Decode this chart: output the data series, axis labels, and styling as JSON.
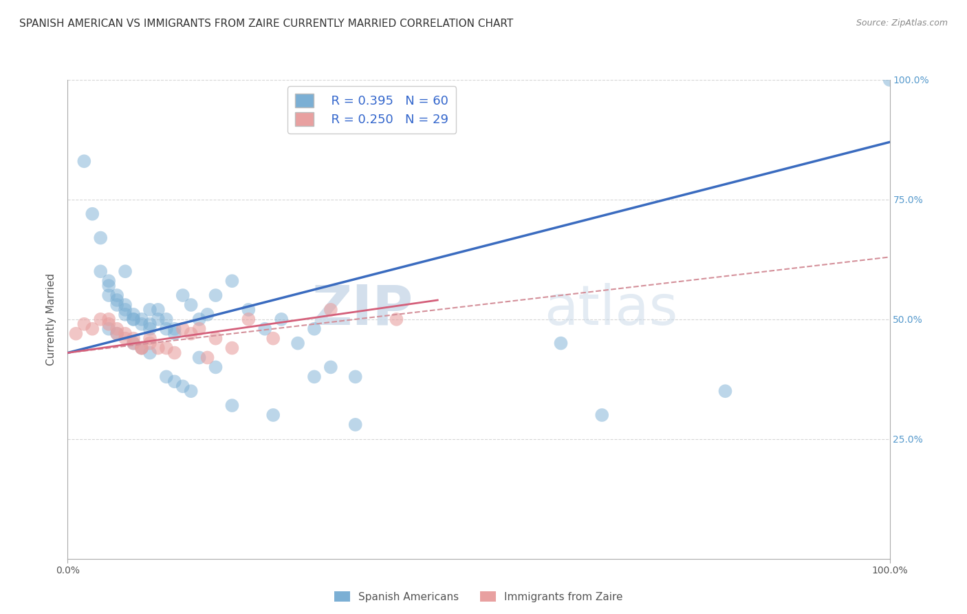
{
  "title": "SPANISH AMERICAN VS IMMIGRANTS FROM ZAIRE CURRENTLY MARRIED CORRELATION CHART",
  "source": "Source: ZipAtlas.com",
  "ylabel": "Currently Married",
  "xlim": [
    0.0,
    1.0
  ],
  "ylim": [
    0.0,
    1.0
  ],
  "y_tick_positions": [
    0.25,
    0.5,
    0.75,
    1.0
  ],
  "y_tick_labels": [
    "25.0%",
    "50.0%",
    "75.0%",
    "100.0%"
  ],
  "legend_r1": "R = 0.395",
  "legend_n1": "N = 60",
  "legend_r2": "R = 0.250",
  "legend_n2": "N = 29",
  "blue_color": "#7bafd4",
  "pink_color": "#e8a0a0",
  "line_blue": "#3a6bbf",
  "line_pink": "#d45f7a",
  "line_dashed_color": "#d4909a",
  "watermark_zip": "ZIP",
  "watermark_atlas": "atlas",
  "blue_scatter_x": [
    0.02,
    0.03,
    0.04,
    0.04,
    0.05,
    0.05,
    0.05,
    0.06,
    0.06,
    0.06,
    0.07,
    0.07,
    0.07,
    0.08,
    0.08,
    0.08,
    0.09,
    0.09,
    0.1,
    0.1,
    0.1,
    0.11,
    0.11,
    0.12,
    0.12,
    0.13,
    0.13,
    0.14,
    0.15,
    0.16,
    0.17,
    0.18,
    0.2,
    0.22,
    0.24,
    0.26,
    0.28,
    0.3,
    0.32,
    0.35,
    0.05,
    0.06,
    0.07,
    0.08,
    0.09,
    0.1,
    0.12,
    0.13,
    0.14,
    0.15,
    0.16,
    0.18,
    0.2,
    0.25,
    0.3,
    0.35,
    0.6,
    0.65,
    0.8,
    1.0
  ],
  "blue_scatter_y": [
    0.83,
    0.72,
    0.67,
    0.6,
    0.58,
    0.57,
    0.55,
    0.55,
    0.54,
    0.53,
    0.53,
    0.52,
    0.51,
    0.51,
    0.5,
    0.5,
    0.5,
    0.49,
    0.49,
    0.48,
    0.52,
    0.52,
    0.5,
    0.5,
    0.48,
    0.48,
    0.47,
    0.55,
    0.53,
    0.5,
    0.51,
    0.55,
    0.58,
    0.52,
    0.48,
    0.5,
    0.45,
    0.48,
    0.4,
    0.38,
    0.48,
    0.47,
    0.6,
    0.45,
    0.44,
    0.43,
    0.38,
    0.37,
    0.36,
    0.35,
    0.42,
    0.4,
    0.32,
    0.3,
    0.38,
    0.28,
    0.45,
    0.3,
    0.35,
    1.0
  ],
  "pink_scatter_x": [
    0.01,
    0.02,
    0.03,
    0.04,
    0.05,
    0.05,
    0.06,
    0.06,
    0.07,
    0.07,
    0.08,
    0.08,
    0.09,
    0.09,
    0.1,
    0.1,
    0.11,
    0.12,
    0.13,
    0.14,
    0.15,
    0.16,
    0.17,
    0.18,
    0.2,
    0.22,
    0.25,
    0.32,
    0.4
  ],
  "pink_scatter_y": [
    0.47,
    0.49,
    0.48,
    0.5,
    0.5,
    0.49,
    0.48,
    0.47,
    0.47,
    0.46,
    0.46,
    0.45,
    0.44,
    0.44,
    0.46,
    0.45,
    0.44,
    0.44,
    0.43,
    0.48,
    0.47,
    0.48,
    0.42,
    0.46,
    0.44,
    0.5,
    0.46,
    0.52,
    0.5
  ],
  "blue_line_x": [
    0.0,
    1.0
  ],
  "blue_line_y": [
    0.43,
    0.87
  ],
  "pink_line_x": [
    0.0,
    0.45
  ],
  "pink_line_y": [
    0.43,
    0.54
  ],
  "dashed_line_x": [
    0.0,
    1.0
  ],
  "dashed_line_y": [
    0.43,
    0.63
  ],
  "grid_color": "#cccccc",
  "background_color": "#ffffff",
  "title_fontsize": 11,
  "axis_label_fontsize": 11,
  "tick_fontsize": 10,
  "legend_fontsize": 13
}
